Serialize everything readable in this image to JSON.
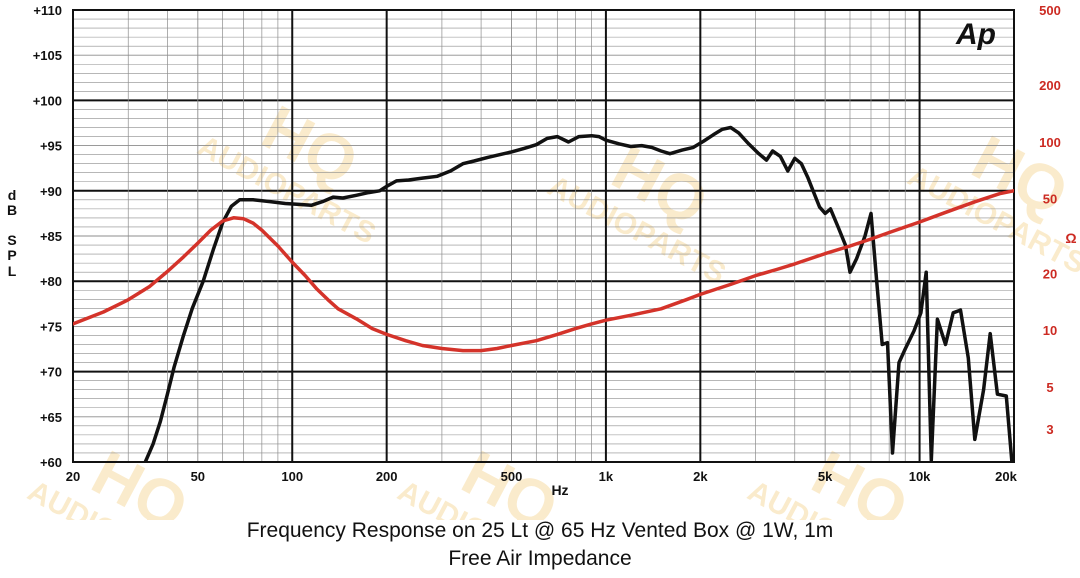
{
  "watermark": {
    "brand": "HQ",
    "sub": "AUDIOPARTS"
  },
  "logo_text": "Ap",
  "caption": {
    "line1": "Frequency Response on 25 Lt @ 65 Hz Vented Box @ 1W, 1m",
    "line2": "Free Air Impedance"
  },
  "chart_data": {
    "type": "line",
    "x_scale": "log",
    "xlim": [
      20,
      20000
    ],
    "xlabel": "Hz",
    "x_ticks": [
      {
        "value": 20,
        "label": "20"
      },
      {
        "value": 50,
        "label": "50"
      },
      {
        "value": 100,
        "label": "100"
      },
      {
        "value": 200,
        "label": "200"
      },
      {
        "value": 500,
        "label": "500"
      },
      {
        "value": 1000,
        "label": "1k"
      },
      {
        "value": 2000,
        "label": "2k"
      },
      {
        "value": 5000,
        "label": "5k"
      },
      {
        "value": 10000,
        "label": "10k"
      },
      {
        "value": 20000,
        "label": "20k"
      }
    ],
    "y_left": {
      "label_chars": [
        "d",
        "B",
        "S",
        "P",
        "L"
      ],
      "ylim": [
        60,
        110
      ],
      "ticks": [
        {
          "value": 110,
          "label": "+110"
        },
        {
          "value": 105,
          "label": "+105"
        },
        {
          "value": 100,
          "label": "+100"
        },
        {
          "value": 95,
          "label": "+95"
        },
        {
          "value": 90,
          "label": "+90"
        },
        {
          "value": 85,
          "label": "+85"
        },
        {
          "value": 80,
          "label": "+80"
        },
        {
          "value": 75,
          "label": "+75"
        },
        {
          "value": 70,
          "label": "+70"
        },
        {
          "value": 65,
          "label": "+65"
        },
        {
          "value": 60,
          "label": "+60"
        }
      ]
    },
    "y_right": {
      "label": "Ω",
      "scale": "log",
      "ylim": [
        2,
        500
      ],
      "ticks": [
        {
          "value": 500,
          "label": "500"
        },
        {
          "value": 200,
          "label": "200"
        },
        {
          "value": 100,
          "label": "100"
        },
        {
          "value": 50,
          "label": "50"
        },
        {
          "value": 20,
          "label": "20"
        },
        {
          "value": 10,
          "label": "10"
        },
        {
          "value": 5,
          "label": "5"
        },
        {
          "value": 3,
          "label": "3"
        }
      ]
    },
    "grid": true,
    "series": [
      {
        "axis": "left",
        "color": "#111111",
        "points": [
          [
            34,
            60
          ],
          [
            36,
            62
          ],
          [
            38,
            64.5
          ],
          [
            40,
            67.5
          ],
          [
            42,
            70.5
          ],
          [
            45,
            74
          ],
          [
            48,
            77
          ],
          [
            52,
            80
          ],
          [
            56,
            83.5
          ],
          [
            60,
            86.5
          ],
          [
            64,
            88.3
          ],
          [
            68,
            89
          ],
          [
            75,
            89
          ],
          [
            85,
            88.8
          ],
          [
            95,
            88.6
          ],
          [
            105,
            88.5
          ],
          [
            115,
            88.4
          ],
          [
            125,
            88.8
          ],
          [
            135,
            89.3
          ],
          [
            145,
            89.2
          ],
          [
            160,
            89.5
          ],
          [
            175,
            89.8
          ],
          [
            190,
            90
          ],
          [
            200,
            90.5
          ],
          [
            215,
            91.1
          ],
          [
            235,
            91.2
          ],
          [
            260,
            91.4
          ],
          [
            290,
            91.6
          ],
          [
            320,
            92.2
          ],
          [
            350,
            93
          ],
          [
            380,
            93.3
          ],
          [
            420,
            93.7
          ],
          [
            460,
            94
          ],
          [
            500,
            94.3
          ],
          [
            550,
            94.7
          ],
          [
            600,
            95.1
          ],
          [
            650,
            95.8
          ],
          [
            700,
            96
          ],
          [
            760,
            95.4
          ],
          [
            820,
            96
          ],
          [
            900,
            96.1
          ],
          [
            950,
            96
          ],
          [
            1000,
            95.6
          ],
          [
            1100,
            95.2
          ],
          [
            1200,
            94.9
          ],
          [
            1300,
            95
          ],
          [
            1400,
            94.8
          ],
          [
            1500,
            94.4
          ],
          [
            1600,
            94.1
          ],
          [
            1750,
            94.5
          ],
          [
            1900,
            94.8
          ],
          [
            2050,
            95.5
          ],
          [
            2200,
            96.2
          ],
          [
            2350,
            96.8
          ],
          [
            2500,
            97
          ],
          [
            2650,
            96.4
          ],
          [
            2850,
            95.2
          ],
          [
            3050,
            94.2
          ],
          [
            3250,
            93.4
          ],
          [
            3400,
            94.4
          ],
          [
            3600,
            93.8
          ],
          [
            3800,
            92.2
          ],
          [
            4000,
            93.6
          ],
          [
            4200,
            93
          ],
          [
            4400,
            91.5
          ],
          [
            4600,
            89.8
          ],
          [
            4800,
            88.2
          ],
          [
            5000,
            87.5
          ],
          [
            5200,
            88
          ],
          [
            5500,
            86
          ],
          [
            5800,
            84
          ],
          [
            6000,
            81
          ],
          [
            6300,
            82.5
          ],
          [
            6700,
            85
          ],
          [
            7000,
            87.5
          ],
          [
            7300,
            80
          ],
          [
            7600,
            73
          ],
          [
            7900,
            73.2
          ],
          [
            8200,
            61
          ],
          [
            8600,
            71
          ],
          [
            9000,
            72.5
          ],
          [
            9600,
            74.5
          ],
          [
            10100,
            76.5
          ],
          [
            10500,
            81
          ],
          [
            10900,
            60.2
          ],
          [
            11400,
            75.8
          ],
          [
            12100,
            73
          ],
          [
            12800,
            76.5
          ],
          [
            13500,
            76.8
          ],
          [
            14300,
            71.5
          ],
          [
            15000,
            62.5
          ],
          [
            16000,
            68
          ],
          [
            16800,
            74.2
          ],
          [
            17700,
            67.5
          ],
          [
            18900,
            67.3
          ],
          [
            19700,
            60
          ]
        ]
      },
      {
        "axis": "right",
        "color": "#d4332a",
        "points": [
          [
            20,
            10.8
          ],
          [
            25,
            12.5
          ],
          [
            30,
            14.5
          ],
          [
            35,
            17
          ],
          [
            40,
            20.5
          ],
          [
            45,
            24.5
          ],
          [
            50,
            29
          ],
          [
            55,
            34
          ],
          [
            60,
            38
          ],
          [
            65,
            39.5
          ],
          [
            70,
            39
          ],
          [
            75,
            37
          ],
          [
            80,
            34
          ],
          [
            90,
            28
          ],
          [
            100,
            23
          ],
          [
            110,
            19.5
          ],
          [
            120,
            16.5
          ],
          [
            130,
            14.5
          ],
          [
            140,
            13
          ],
          [
            160,
            11.5
          ],
          [
            180,
            10.2
          ],
          [
            200,
            9.5
          ],
          [
            230,
            8.8
          ],
          [
            260,
            8.3
          ],
          [
            300,
            8
          ],
          [
            350,
            7.8
          ],
          [
            400,
            7.8
          ],
          [
            450,
            8
          ],
          [
            500,
            8.3
          ],
          [
            600,
            8.8
          ],
          [
            700,
            9.5
          ],
          [
            800,
            10.2
          ],
          [
            900,
            10.8
          ],
          [
            1000,
            11.3
          ],
          [
            1200,
            12
          ],
          [
            1500,
            13
          ],
          [
            1800,
            14.5
          ],
          [
            2000,
            15.5
          ],
          [
            2500,
            17.5
          ],
          [
            3000,
            19.5
          ],
          [
            3500,
            21
          ],
          [
            4000,
            22.5
          ],
          [
            5000,
            25.5
          ],
          [
            6000,
            28
          ],
          [
            7000,
            30.5
          ],
          [
            8000,
            33
          ],
          [
            10000,
            37.5
          ],
          [
            12000,
            42
          ],
          [
            15000,
            48
          ],
          [
            18000,
            53
          ],
          [
            20000,
            55
          ]
        ]
      }
    ]
  }
}
